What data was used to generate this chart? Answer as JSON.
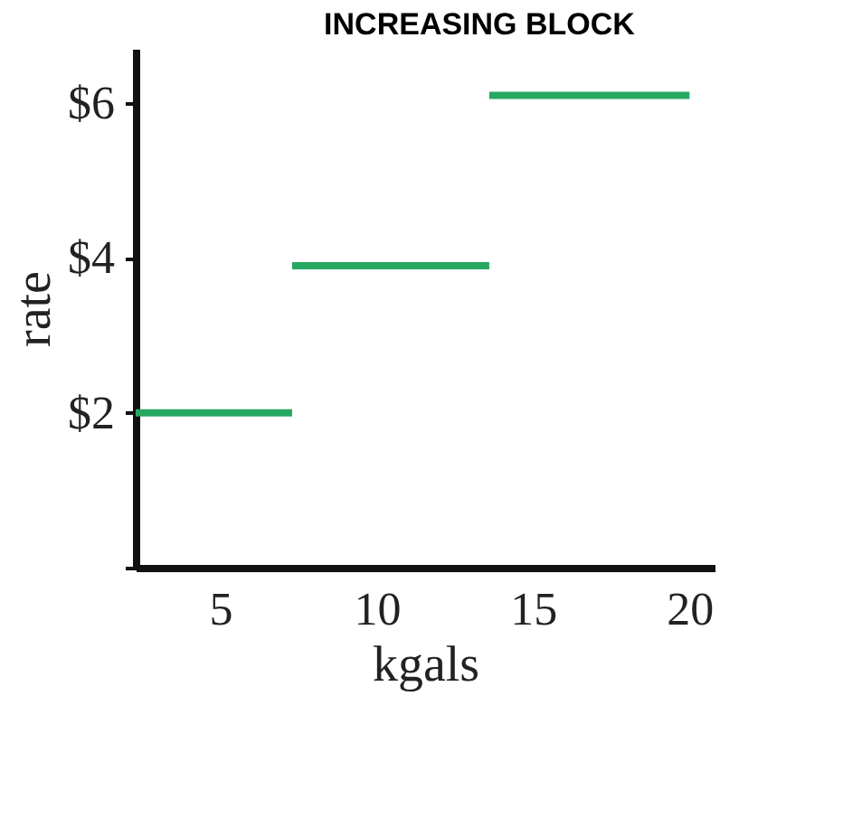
{
  "chart_data": {
    "type": "line",
    "title": "INCREASING BLOCK",
    "xlabel": "kgals",
    "ylabel": "rate",
    "series": [
      {
        "color": "#27a862",
        "x": [
          2.3,
          7.3
        ],
        "values": [
          2.0,
          2.0
        ]
      },
      {
        "color": "#27a862",
        "x": [
          7.3,
          13.6
        ],
        "values": [
          3.9,
          3.9
        ]
      },
      {
        "color": "#27a862",
        "x": [
          13.6,
          20
        ],
        "values": [
          6.1,
          6.1
        ]
      }
    ],
    "xlim": [
      2.3,
      20.8
    ],
    "xticks": [
      5,
      10,
      15,
      20
    ],
    "ylim": [
      0,
      6.7
    ],
    "yticks": [
      {
        "value": 0,
        "label": null
      },
      {
        "value": 2,
        "label": "$2"
      },
      {
        "value": 4,
        "label": "$4"
      },
      {
        "value": 6,
        "label": "$6"
      }
    ],
    "grid": false,
    "legend": false,
    "marker": "none",
    "line_style": "solid"
  }
}
